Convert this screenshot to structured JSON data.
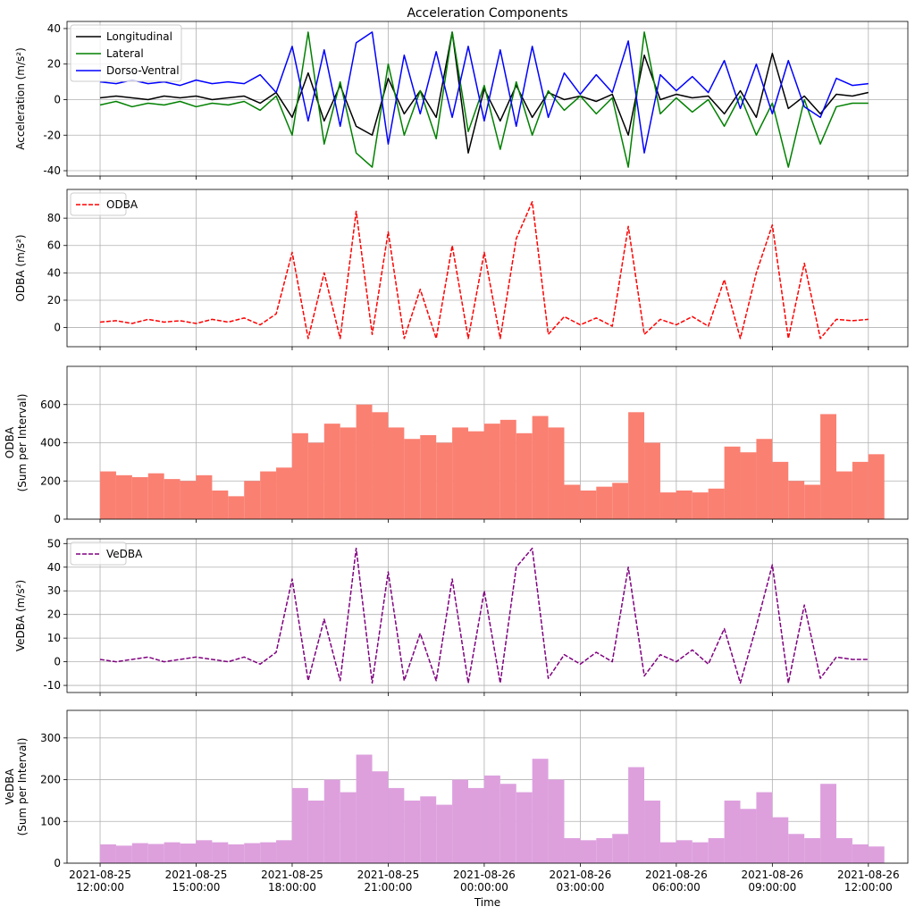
{
  "chart_data": [
    {
      "type": "line",
      "title": "Acceleration Components",
      "ylabel": "Acceleration (m/s²)",
      "x": [
        "2021-08-25 12:00:00",
        "2021-08-25 12:30:00",
        "2021-08-25 13:00:00",
        "2021-08-25 13:30:00",
        "2021-08-25 14:00:00",
        "2021-08-25 14:30:00",
        "2021-08-25 15:00:00",
        "2021-08-25 15:30:00",
        "2021-08-25 16:00:00",
        "2021-08-25 16:30:00",
        "2021-08-25 17:00:00",
        "2021-08-25 17:30:00",
        "2021-08-25 18:00:00",
        "2021-08-25 18:30:00",
        "2021-08-25 19:00:00",
        "2021-08-25 19:30:00",
        "2021-08-25 20:00:00",
        "2021-08-25 20:30:00",
        "2021-08-25 21:00:00",
        "2021-08-25 21:30:00",
        "2021-08-25 22:00:00",
        "2021-08-25 22:30:00",
        "2021-08-25 23:00:00",
        "2021-08-25 23:30:00",
        "2021-08-26 00:00:00",
        "2021-08-26 00:30:00",
        "2021-08-26 01:00:00",
        "2021-08-26 01:30:00",
        "2021-08-26 02:00:00",
        "2021-08-26 02:30:00",
        "2021-08-26 03:00:00",
        "2021-08-26 03:30:00",
        "2021-08-26 04:00:00",
        "2021-08-26 04:30:00",
        "2021-08-26 05:00:00",
        "2021-08-26 05:30:00",
        "2021-08-26 06:00:00",
        "2021-08-26 06:30:00",
        "2021-08-26 07:00:00",
        "2021-08-26 07:30:00",
        "2021-08-26 08:00:00",
        "2021-08-26 08:30:00",
        "2021-08-26 09:00:00",
        "2021-08-26 09:30:00",
        "2021-08-26 10:00:00",
        "2021-08-26 10:30:00",
        "2021-08-26 11:00:00",
        "2021-08-26 11:30:00",
        "2021-08-26 12:00:00"
      ],
      "series": [
        {
          "name": "Longitudinal",
          "color": "#000000",
          "values": [
            1,
            2,
            1,
            0,
            2,
            1,
            2,
            0,
            1,
            2,
            -2,
            4,
            -10,
            15,
            -12,
            8,
            -15,
            -20,
            12,
            -8,
            5,
            -10,
            38,
            -30,
            6,
            -12,
            8,
            -10,
            4,
            0,
            2,
            -1,
            3,
            -20,
            25,
            0,
            3,
            1,
            2,
            -8,
            5,
            -10,
            26,
            -5,
            2,
            -8,
            3,
            2,
            4
          ]
        },
        {
          "name": "Lateral",
          "color": "#008000",
          "values": [
            -3,
            -1,
            -4,
            -2,
            -3,
            -1,
            -4,
            -2,
            -3,
            -1,
            -6,
            2,
            -20,
            38,
            -25,
            10,
            -30,
            -38,
            20,
            -20,
            5,
            -22,
            38,
            -18,
            8,
            -28,
            10,
            -20,
            5,
            -6,
            2,
            -8,
            1,
            -38,
            38,
            -8,
            1,
            -7,
            0,
            -15,
            2,
            -20,
            -2,
            -38,
            0,
            -25,
            -4,
            -2,
            -2
          ]
        },
        {
          "name": "Dorso-Ventral",
          "color": "#0000ff",
          "values": [
            10,
            9,
            11,
            9,
            10,
            8,
            11,
            9,
            10,
            9,
            14,
            4,
            30,
            -12,
            28,
            -15,
            32,
            38,
            -25,
            25,
            -8,
            27,
            -10,
            30,
            -12,
            28,
            -15,
            30,
            -10,
            15,
            3,
            14,
            4,
            33,
            -30,
            14,
            5,
            13,
            4,
            22,
            -5,
            20,
            -8,
            22,
            -4,
            -10,
            12,
            8,
            9
          ]
        }
      ],
      "xlim": [
        "2021-08-25 10:58:00",
        "2021-08-26 13:14:00"
      ],
      "xticks": [
        "2021-08-25 12:00:00",
        "2021-08-25 15:00:00",
        "2021-08-25 18:00:00",
        "2021-08-25 21:00:00",
        "2021-08-26 00:00:00",
        "2021-08-26 03:00:00",
        "2021-08-26 06:00:00",
        "2021-08-26 09:00:00",
        "2021-08-26 12:00:00"
      ],
      "ylim": [
        -43,
        44
      ],
      "yticks": [
        -40,
        -20,
        0,
        20,
        40
      ],
      "grid": true,
      "legend": "upper left"
    },
    {
      "type": "line",
      "ylabel": "ODBA (m/s²)",
      "x": [
        "2021-08-25 12:00:00",
        "2021-08-25 12:30:00",
        "2021-08-25 13:00:00",
        "2021-08-25 13:30:00",
        "2021-08-25 14:00:00",
        "2021-08-25 14:30:00",
        "2021-08-25 15:00:00",
        "2021-08-25 15:30:00",
        "2021-08-25 16:00:00",
        "2021-08-25 16:30:00",
        "2021-08-25 17:00:00",
        "2021-08-25 17:30:00",
        "2021-08-25 18:00:00",
        "2021-08-25 18:30:00",
        "2021-08-25 19:00:00",
        "2021-08-25 19:30:00",
        "2021-08-25 20:00:00",
        "2021-08-25 20:30:00",
        "2021-08-25 21:00:00",
        "2021-08-25 21:30:00",
        "2021-08-25 22:00:00",
        "2021-08-25 22:30:00",
        "2021-08-25 23:00:00",
        "2021-08-25 23:30:00",
        "2021-08-26 00:00:00",
        "2021-08-26 00:30:00",
        "2021-08-26 01:00:00",
        "2021-08-26 01:30:00",
        "2021-08-26 02:00:00",
        "2021-08-26 02:30:00",
        "2021-08-26 03:00:00",
        "2021-08-26 03:30:00",
        "2021-08-26 04:00:00",
        "2021-08-26 04:30:00",
        "2021-08-26 05:00:00",
        "2021-08-26 05:30:00",
        "2021-08-26 06:00:00",
        "2021-08-26 06:30:00",
        "2021-08-26 07:00:00",
        "2021-08-26 07:30:00",
        "2021-08-26 08:00:00",
        "2021-08-26 08:30:00",
        "2021-08-26 09:00:00",
        "2021-08-26 09:30:00",
        "2021-08-26 10:00:00",
        "2021-08-26 10:30:00",
        "2021-08-26 11:00:00",
        "2021-08-26 11:30:00",
        "2021-08-26 12:00:00"
      ],
      "series": [
        {
          "name": "ODBA",
          "color": "#ff0000",
          "linestyle": "dashed",
          "values": [
            4,
            5,
            3,
            6,
            4,
            5,
            3,
            6,
            4,
            7,
            2,
            10,
            55,
            -8,
            40,
            -8,
            85,
            -5,
            70,
            -8,
            28,
            -8,
            60,
            -8,
            55,
            -8,
            65,
            92,
            -5,
            8,
            2,
            7,
            1,
            74,
            -5,
            6,
            2,
            8,
            1,
            35,
            -8,
            40,
            75,
            -8,
            47,
            -8,
            6,
            5,
            6
          ]
        }
      ],
      "xlim": [
        "2021-08-25 10:58:00",
        "2021-08-26 13:14:00"
      ],
      "xticks": [
        "2021-08-25 12:00:00",
        "2021-08-25 15:00:00",
        "2021-08-25 18:00:00",
        "2021-08-25 21:00:00",
        "2021-08-26 00:00:00",
        "2021-08-26 03:00:00",
        "2021-08-26 06:00:00",
        "2021-08-26 09:00:00",
        "2021-08-26 12:00:00"
      ],
      "ylim": [
        -14,
        101
      ],
      "yticks": [
        0,
        20,
        40,
        60,
        80
      ],
      "grid": true,
      "legend": "upper left"
    },
    {
      "type": "bar",
      "ylabel": "ODBA\n(Sum per Interval)",
      "color": "#fa8072",
      "x": [
        "2021-08-25 12:00:00",
        "2021-08-25 12:30:00",
        "2021-08-25 13:00:00",
        "2021-08-25 13:30:00",
        "2021-08-25 14:00:00",
        "2021-08-25 14:30:00",
        "2021-08-25 15:00:00",
        "2021-08-25 15:30:00",
        "2021-08-25 16:00:00",
        "2021-08-25 16:30:00",
        "2021-08-25 17:00:00",
        "2021-08-25 17:30:00",
        "2021-08-25 18:00:00",
        "2021-08-25 18:30:00",
        "2021-08-25 19:00:00",
        "2021-08-25 19:30:00",
        "2021-08-25 20:00:00",
        "2021-08-25 20:30:00",
        "2021-08-25 21:00:00",
        "2021-08-25 21:30:00",
        "2021-08-25 22:00:00",
        "2021-08-25 22:30:00",
        "2021-08-25 23:00:00",
        "2021-08-25 23:30:00",
        "2021-08-26 00:00:00",
        "2021-08-26 00:30:00",
        "2021-08-26 01:00:00",
        "2021-08-26 01:30:00",
        "2021-08-26 02:00:00",
        "2021-08-26 02:30:00",
        "2021-08-26 03:00:00",
        "2021-08-26 03:30:00",
        "2021-08-26 04:00:00",
        "2021-08-26 04:30:00",
        "2021-08-26 05:00:00",
        "2021-08-26 05:30:00",
        "2021-08-26 06:00:00",
        "2021-08-26 06:30:00",
        "2021-08-26 07:00:00",
        "2021-08-26 07:30:00",
        "2021-08-26 08:00:00",
        "2021-08-26 08:30:00",
        "2021-08-26 09:00:00",
        "2021-08-26 09:30:00",
        "2021-08-26 10:00:00",
        "2021-08-26 10:30:00",
        "2021-08-26 11:00:00",
        "2021-08-26 11:30:00",
        "2021-08-26 12:00:00"
      ],
      "values": [
        250,
        230,
        220,
        240,
        210,
        200,
        230,
        150,
        120,
        200,
        250,
        270,
        450,
        400,
        500,
        480,
        600,
        560,
        480,
        420,
        440,
        400,
        480,
        460,
        500,
        520,
        450,
        540,
        480,
        180,
        150,
        170,
        190,
        560,
        400,
        140,
        150,
        140,
        160,
        380,
        350,
        420,
        300,
        200,
        180,
        550,
        250,
        300,
        340
      ],
      "xlim": [
        "2021-08-25 10:58:00",
        "2021-08-26 13:14:00"
      ],
      "xticks": [
        "2021-08-25 12:00:00",
        "2021-08-25 15:00:00",
        "2021-08-25 18:00:00",
        "2021-08-25 21:00:00",
        "2021-08-26 00:00:00",
        "2021-08-26 03:00:00",
        "2021-08-26 06:00:00",
        "2021-08-26 09:00:00",
        "2021-08-26 12:00:00"
      ],
      "ylim": [
        0,
        800
      ],
      "yticks": [
        0,
        200,
        400,
        600
      ],
      "grid": true
    },
    {
      "type": "line",
      "ylabel": "VeDBA (m/s²)",
      "x": [
        "2021-08-25 12:00:00",
        "2021-08-25 12:30:00",
        "2021-08-25 13:00:00",
        "2021-08-25 13:30:00",
        "2021-08-25 14:00:00",
        "2021-08-25 14:30:00",
        "2021-08-25 15:00:00",
        "2021-08-25 15:30:00",
        "2021-08-25 16:00:00",
        "2021-08-25 16:30:00",
        "2021-08-25 17:00:00",
        "2021-08-25 17:30:00",
        "2021-08-25 18:00:00",
        "2021-08-25 18:30:00",
        "2021-08-25 19:00:00",
        "2021-08-25 19:30:00",
        "2021-08-25 20:00:00",
        "2021-08-25 20:30:00",
        "2021-08-25 21:00:00",
        "2021-08-25 21:30:00",
        "2021-08-25 22:00:00",
        "2021-08-25 22:30:00",
        "2021-08-25 23:00:00",
        "2021-08-25 23:30:00",
        "2021-08-26 00:00:00",
        "2021-08-26 00:30:00",
        "2021-08-26 01:00:00",
        "2021-08-26 01:30:00",
        "2021-08-26 02:00:00",
        "2021-08-26 02:30:00",
        "2021-08-26 03:00:00",
        "2021-08-26 03:30:00",
        "2021-08-26 04:00:00",
        "2021-08-26 04:30:00",
        "2021-08-26 05:00:00",
        "2021-08-26 05:30:00",
        "2021-08-26 06:00:00",
        "2021-08-26 06:30:00",
        "2021-08-26 07:00:00",
        "2021-08-26 07:30:00",
        "2021-08-26 08:00:00",
        "2021-08-26 08:30:00",
        "2021-08-26 09:00:00",
        "2021-08-26 09:30:00",
        "2021-08-26 10:00:00",
        "2021-08-26 10:30:00",
        "2021-08-26 11:00:00",
        "2021-08-26 11:30:00",
        "2021-08-26 12:00:00"
      ],
      "series": [
        {
          "name": "VeDBA",
          "color": "#800080",
          "linestyle": "dashed",
          "values": [
            1,
            0,
            1,
            2,
            0,
            1,
            2,
            1,
            0,
            2,
            -1,
            4,
            35,
            -8,
            18,
            -8,
            48,
            -9,
            38,
            -8,
            12,
            -8,
            35,
            -9,
            30,
            -9,
            40,
            48,
            -7,
            3,
            -1,
            4,
            0,
            40,
            -6,
            3,
            0,
            5,
            -1,
            14,
            -9,
            15,
            41,
            -9,
            24,
            -7,
            2,
            1,
            1
          ]
        }
      ],
      "xlim": [
        "2021-08-25 10:58:00",
        "2021-08-26 13:14:00"
      ],
      "xticks": [
        "2021-08-25 12:00:00",
        "2021-08-25 15:00:00",
        "2021-08-25 18:00:00",
        "2021-08-25 21:00:00",
        "2021-08-26 00:00:00",
        "2021-08-26 03:00:00",
        "2021-08-26 06:00:00",
        "2021-08-26 09:00:00",
        "2021-08-26 12:00:00"
      ],
      "ylim": [
        -13,
        52
      ],
      "yticks": [
        -10,
        0,
        10,
        20,
        30,
        40,
        50
      ],
      "grid": true,
      "legend": "upper left"
    },
    {
      "type": "bar",
      "ylabel": "VeDBA\n(Sum per Interval)",
      "xlabel": "Time",
      "color": "#dda0dd",
      "x": [
        "2021-08-25 12:00:00",
        "2021-08-25 12:30:00",
        "2021-08-25 13:00:00",
        "2021-08-25 13:30:00",
        "2021-08-25 14:00:00",
        "2021-08-25 14:30:00",
        "2021-08-25 15:00:00",
        "2021-08-25 15:30:00",
        "2021-08-25 16:00:00",
        "2021-08-25 16:30:00",
        "2021-08-25 17:00:00",
        "2021-08-25 17:30:00",
        "2021-08-25 18:00:00",
        "2021-08-25 18:30:00",
        "2021-08-25 19:00:00",
        "2021-08-25 19:30:00",
        "2021-08-25 20:00:00",
        "2021-08-25 20:30:00",
        "2021-08-25 21:00:00",
        "2021-08-25 21:30:00",
        "2021-08-25 22:00:00",
        "2021-08-25 22:30:00",
        "2021-08-25 23:00:00",
        "2021-08-25 23:30:00",
        "2021-08-26 00:00:00",
        "2021-08-26 00:30:00",
        "2021-08-26 01:00:00",
        "2021-08-26 01:30:00",
        "2021-08-26 02:00:00",
        "2021-08-26 02:30:00",
        "2021-08-26 03:00:00",
        "2021-08-26 03:30:00",
        "2021-08-26 04:00:00",
        "2021-08-26 04:30:00",
        "2021-08-26 05:00:00",
        "2021-08-26 05:30:00",
        "2021-08-26 06:00:00",
        "2021-08-26 06:30:00",
        "2021-08-26 07:00:00",
        "2021-08-26 07:30:00",
        "2021-08-26 08:00:00",
        "2021-08-26 08:30:00",
        "2021-08-26 09:00:00",
        "2021-08-26 09:30:00",
        "2021-08-26 10:00:00",
        "2021-08-26 10:30:00",
        "2021-08-26 11:00:00",
        "2021-08-26 11:30:00",
        "2021-08-26 12:00:00"
      ],
      "values": [
        45,
        42,
        48,
        46,
        50,
        47,
        55,
        50,
        45,
        48,
        50,
        55,
        180,
        150,
        200,
        170,
        260,
        220,
        180,
        150,
        160,
        140,
        200,
        180,
        210,
        190,
        170,
        250,
        200,
        60,
        55,
        60,
        70,
        230,
        150,
        50,
        55,
        50,
        60,
        150,
        130,
        170,
        110,
        70,
        60,
        190,
        60,
        45,
        40
      ],
      "xlim": [
        "2021-08-25 10:58:00",
        "2021-08-26 13:14:00"
      ],
      "xticks": [
        {
          "value": "2021-08-25 12:00:00",
          "label": "2021-08-25\n12:00:00"
        },
        {
          "value": "2021-08-25 15:00:00",
          "label": "2021-08-25\n15:00:00"
        },
        {
          "value": "2021-08-25 18:00:00",
          "label": "2021-08-25\n18:00:00"
        },
        {
          "value": "2021-08-25 21:00:00",
          "label": "2021-08-25\n21:00:00"
        },
        {
          "value": "2021-08-26 00:00:00",
          "label": "2021-08-26\n00:00:00"
        },
        {
          "value": "2021-08-26 03:00:00",
          "label": "2021-08-26\n03:00:00"
        },
        {
          "value": "2021-08-26 06:00:00",
          "label": "2021-08-26\n06:00:00"
        },
        {
          "value": "2021-08-26 09:00:00",
          "label": "2021-08-26\n09:00:00"
        },
        {
          "value": "2021-08-26 12:00:00",
          "label": "2021-08-26\n12:00:00"
        }
      ],
      "ylim": [
        0,
        366
      ],
      "yticks": [
        0,
        100,
        200,
        300
      ],
      "grid": true
    }
  ]
}
